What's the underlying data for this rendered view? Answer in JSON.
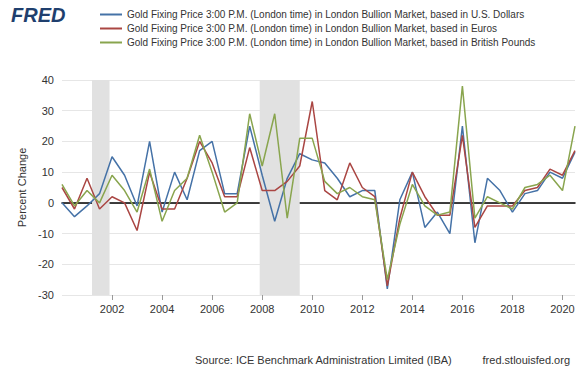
{
  "chart_data": {
    "type": "line",
    "logo": "FRED",
    "y_label": "Percent Change",
    "source": "Source: ICE Benchmark Administration Limited (IBA)",
    "site": "fred.stlouisfed.org",
    "x": [
      2000,
      2000.5,
      2001,
      2001.5,
      2002,
      2002.5,
      2003,
      2003.5,
      2004,
      2004.5,
      2005,
      2005.5,
      2006,
      2006.5,
      2007,
      2007.5,
      2008,
      2008.5,
      2009,
      2009.5,
      2010,
      2010.5,
      2011,
      2011.5,
      2012,
      2012.5,
      2013,
      2013.5,
      2014,
      2014.5,
      2015,
      2015.5,
      2016,
      2016.5,
      2017,
      2017.5,
      2018,
      2018.5,
      2019,
      2019.5,
      2020,
      2020.5
    ],
    "series": [
      {
        "name": "Gold Fixing Price 3:00 P.M. (London time) in London Bullion Market, based in U.S. Dollars",
        "color": "#4572a7",
        "values": [
          0,
          -4.5,
          -1,
          3,
          15,
          9,
          -1,
          20,
          -3,
          10,
          1,
          17,
          20,
          3,
          3,
          25,
          9,
          -6,
          8,
          16,
          14,
          13,
          8,
          2,
          4,
          4,
          -28,
          1,
          10,
          -8,
          -3,
          -10,
          25,
          -13,
          8,
          4,
          -3,
          3,
          4,
          10,
          8,
          16.5
        ]
      },
      {
        "name": "Gold Fixing Price 3:00 P.M. (London time) in London Bullion Market, based in Euros",
        "color": "#aa4643",
        "values": [
          5,
          -2,
          8,
          -2,
          2,
          0,
          -9,
          10,
          -2,
          -2,
          8,
          20,
          13,
          2,
          2,
          18,
          4,
          4,
          7,
          12,
          33,
          4,
          1,
          13,
          5,
          2,
          -27,
          -5,
          10,
          2,
          -4,
          -4,
          22,
          -8,
          -1,
          -1,
          -1,
          4,
          5,
          11,
          9,
          17
        ]
      },
      {
        "name": "Gold Fixing Price 3:00 P.M. (London time) in London Bullion Market, based in British Pounds",
        "color": "#89a54e",
        "values": [
          6,
          -1,
          4,
          0,
          9,
          4,
          -3,
          11,
          -6,
          4,
          8,
          22,
          10,
          -3,
          0,
          29,
          12,
          29,
          -5,
          21,
          21,
          7,
          3,
          5,
          2,
          1,
          -25,
          -7,
          6,
          -1,
          -4,
          -3,
          38,
          -5,
          2,
          0,
          -2,
          5,
          6,
          9,
          4,
          25
        ]
      }
    ],
    "xlim": [
      2000,
      2020.5
    ],
    "xticks": [
      2002,
      2004,
      2006,
      2008,
      2010,
      2012,
      2014,
      2016,
      2018,
      2020
    ],
    "ylim": [
      -30,
      40
    ],
    "yticks": [
      -30,
      -20,
      -10,
      0,
      10,
      20,
      30,
      40
    ],
    "recessions": [
      [
        2001.2,
        2001.9
      ],
      [
        2007.9,
        2009.5
      ]
    ],
    "grid": true,
    "legend": "top-left"
  }
}
